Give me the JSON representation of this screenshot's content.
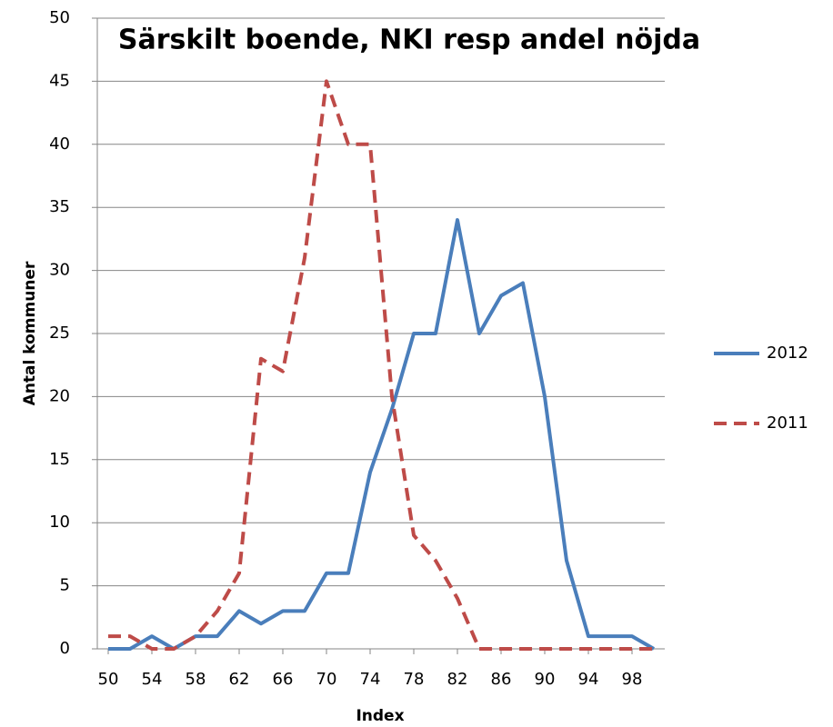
{
  "chart_data": {
    "type": "line",
    "title": "Särskilt boende, NKI resp andel nöjda",
    "x_label": "Index",
    "y_label": "Antal kommuner",
    "x": [
      50,
      52,
      54,
      56,
      58,
      60,
      62,
      64,
      66,
      68,
      70,
      72,
      74,
      76,
      78,
      80,
      82,
      84,
      86,
      88,
      90,
      92,
      94,
      96,
      98,
      100
    ],
    "series": [
      {
        "name": "2012",
        "color": "#4a7ebb",
        "dash": false,
        "values": [
          0,
          0,
          1,
          0,
          1,
          1,
          3,
          2,
          3,
          3,
          6,
          6,
          14,
          19,
          25,
          25,
          34,
          25,
          28,
          29,
          20,
          7,
          1,
          1,
          1,
          0
        ]
      },
      {
        "name": "2011",
        "color": "#be4b48",
        "dash": true,
        "values": [
          1,
          1,
          0,
          0,
          1,
          3,
          6,
          23,
          22,
          31,
          45,
          40,
          40,
          20,
          9,
          7,
          4,
          0,
          0,
          0,
          0,
          0,
          0,
          0,
          0,
          0
        ]
      }
    ],
    "xlim": [
      49,
      101
    ],
    "xticks": [
      50,
      54,
      58,
      62,
      66,
      70,
      74,
      78,
      82,
      86,
      90,
      94,
      98
    ],
    "ylim": [
      0,
      50
    ],
    "yticks": [
      0,
      5,
      10,
      15,
      20,
      25,
      30,
      35,
      40,
      45,
      50
    ],
    "grid": true,
    "legend": "right"
  }
}
